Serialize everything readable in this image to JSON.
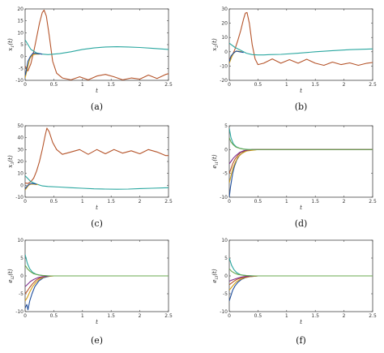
{
  "chart_data": [
    {
      "type": "line",
      "caption": "(a)",
      "xlabel": "t",
      "ylabel": "x_1(t)",
      "xlim": [
        0,
        2.5
      ],
      "ylim": [
        -10,
        20
      ],
      "xticks": [
        "0",
        "0.5",
        "1",
        "1.5",
        "2",
        "2.5"
      ],
      "xtick_values": [
        0,
        0.5,
        1,
        1.5,
        2,
        2.5
      ],
      "yticks": [
        "-10",
        "-5",
        "0",
        "5",
        "10",
        "15",
        "20"
      ],
      "ytick_values": [
        -10,
        -5,
        0,
        5,
        10,
        15,
        20
      ],
      "series": [
        {
          "color": "#b5542a",
          "x": [
            0,
            0.05,
            0.1,
            0.15,
            0.2,
            0.25,
            0.3,
            0.33,
            0.37,
            0.42,
            0.48,
            0.55,
            0.65,
            0.8,
            0.95,
            1.1,
            1.25,
            1.4,
            1.55,
            1.7,
            1.85,
            2.0,
            2.15,
            2.3,
            2.45,
            2.5
          ],
          "y": [
            -4,
            -6,
            -3,
            2,
            8,
            14,
            18.5,
            19.5,
            17,
            9,
            -2,
            -7,
            -9,
            -9.8,
            -8.5,
            -9.8,
            -8.2,
            -7.5,
            -8.5,
            -9.8,
            -9,
            -9.5,
            -7.8,
            -9.2,
            -7.5,
            -7.2
          ]
        },
        {
          "color": "#2aa7a0",
          "x": [
            0,
            0.1,
            0.2,
            0.3,
            0.4,
            0.6,
            0.8,
            1.0,
            1.2,
            1.4,
            1.6,
            1.8,
            2.0,
            2.2,
            2.5
          ],
          "y": [
            7,
            3,
            1.5,
            1,
            0.8,
            1.2,
            2,
            3,
            3.6,
            4,
            4.1,
            4,
            3.8,
            3.5,
            3
          ]
        },
        {
          "color": "#d4a017",
          "x": [
            0,
            0.02,
            0.05,
            0.08,
            0.12,
            0.18,
            0.25
          ],
          "y": [
            -9,
            -7,
            -4,
            -1,
            0.5,
            1,
            1
          ]
        },
        {
          "color": "#1f4e9c",
          "x": [
            0,
            0.02,
            0.05,
            0.09,
            0.14,
            0.2,
            0.3
          ],
          "y": [
            -8,
            -6,
            -2,
            0,
            1.5,
            1.2,
            1
          ]
        }
      ]
    },
    {
      "type": "line",
      "caption": "(b)",
      "xlabel": "t",
      "ylabel": "x_2(t)",
      "xlim": [
        0,
        2.5
      ],
      "ylim": [
        -20,
        30
      ],
      "xticks": [
        "0",
        "0.5",
        "1",
        "1.5",
        "2",
        "2.5"
      ],
      "xtick_values": [
        0,
        0.5,
        1,
        1.5,
        2,
        2.5
      ],
      "yticks": [
        "-20",
        "-10",
        "0",
        "10",
        "20",
        "30"
      ],
      "ytick_values": [
        -20,
        -10,
        0,
        10,
        20,
        30
      ],
      "series": [
        {
          "color": "#b5542a",
          "x": [
            0,
            0.05,
            0.1,
            0.15,
            0.2,
            0.25,
            0.28,
            0.31,
            0.35,
            0.4,
            0.45,
            0.5,
            0.6,
            0.75,
            0.9,
            1.05,
            1.2,
            1.35,
            1.5,
            1.65,
            1.8,
            1.95,
            2.1,
            2.25,
            2.4,
            2.5
          ],
          "y": [
            -5,
            -3,
            2,
            8,
            15,
            23,
            27,
            27.5,
            20,
            5,
            -5,
            -9,
            -8,
            -5,
            -8,
            -5.5,
            -8,
            -5.2,
            -8,
            -9.5,
            -7.2,
            -9,
            -7.8,
            -9.5,
            -8,
            -7.5
          ]
        },
        {
          "color": "#2aa7a0",
          "x": [
            0,
            0.1,
            0.2,
            0.3,
            0.4,
            0.5,
            0.6,
            0.7,
            0.9,
            1.2,
            1.5,
            1.8,
            2.1,
            2.5
          ],
          "y": [
            6,
            3,
            1,
            -1,
            -2,
            -2.2,
            -2.2,
            -2,
            -1.8,
            -1,
            0,
            0.8,
            1.5,
            2
          ]
        },
        {
          "color": "#d4a017",
          "x": [
            0,
            0.03,
            0.06,
            0.1,
            0.15,
            0.22
          ],
          "y": [
            -8,
            -5,
            -2,
            0,
            0.5,
            0
          ]
        },
        {
          "color": "#1f4e9c",
          "x": [
            0,
            0.03,
            0.07,
            0.12,
            0.18,
            0.25
          ],
          "y": [
            -7,
            -3,
            -1,
            0.5,
            0,
            -0.5
          ]
        }
      ]
    },
    {
      "type": "line",
      "caption": "(c)",
      "xlabel": "t",
      "ylabel": "x_3(t)",
      "xlim": [
        0,
        2.5
      ],
      "ylim": [
        -10,
        50
      ],
      "xticks": [
        "0",
        "0.5",
        "1",
        "1.5",
        "2",
        "2.5"
      ],
      "xtick_values": [
        0,
        0.5,
        1,
        1.5,
        2,
        2.5
      ],
      "yticks": [
        "-10",
        "0",
        "10",
        "20",
        "30",
        "40",
        "50"
      ],
      "ytick_values": [
        -10,
        0,
        10,
        20,
        30,
        40,
        50
      ],
      "series": [
        {
          "color": "#b5542a",
          "x": [
            0,
            0.05,
            0.1,
            0.15,
            0.2,
            0.25,
            0.3,
            0.35,
            0.38,
            0.42,
            0.48,
            0.55,
            0.65,
            0.8,
            0.95,
            1.1,
            1.25,
            1.4,
            1.55,
            1.7,
            1.85,
            2.0,
            2.15,
            2.3,
            2.45,
            2.5
          ],
          "y": [
            2,
            1.5,
            3,
            6,
            12,
            20,
            30,
            42,
            48,
            45,
            36,
            30,
            26,
            28,
            30,
            26,
            30,
            26.5,
            30,
            27,
            29,
            26.5,
            30,
            28,
            25,
            25
          ]
        },
        {
          "color": "#2aa7a0",
          "x": [
            0,
            0.1,
            0.2,
            0.3,
            0.4,
            0.6,
            0.8,
            1.0,
            1.2,
            1.4,
            1.6,
            1.8,
            2.0,
            2.2,
            2.5
          ],
          "y": [
            8,
            3,
            1,
            -0.5,
            -1,
            -1.5,
            -2,
            -2.5,
            -3,
            -3.2,
            -3.3,
            -3.2,
            -2.8,
            -2.5,
            -2
          ]
        },
        {
          "color": "#d4a017",
          "x": [
            0,
            0.03,
            0.06,
            0.1,
            0.15,
            0.22
          ],
          "y": [
            -4,
            -2,
            0,
            1,
            1,
            0.5
          ]
        },
        {
          "color": "#1f4e9c",
          "x": [
            0,
            0.03,
            0.07,
            0.12,
            0.2
          ],
          "y": [
            -3,
            -1,
            1,
            1.5,
            1
          ]
        }
      ]
    },
    {
      "type": "line",
      "caption": "(d)",
      "xlabel": "t",
      "ylabel": "e_{i1}(t)",
      "xlim": [
        0,
        2.5
      ],
      "ylim": [
        -10,
        5
      ],
      "xticks": [
        "0",
        "0.5",
        "1",
        "1.5",
        "2",
        "2.5"
      ],
      "xtick_values": [
        0,
        0.5,
        1,
        1.5,
        2,
        2.5
      ],
      "yticks": [
        "-10",
        "-5",
        "0",
        "5"
      ],
      "ytick_values": [
        -10,
        -5,
        0,
        5
      ],
      "series": [
        {
          "color": "#2aa7a0",
          "x": [
            0,
            0.03,
            0.07,
            0.12,
            0.18,
            0.25,
            0.35,
            0.5,
            2.5
          ],
          "y": [
            4.5,
            2.5,
            1.2,
            0.6,
            0.3,
            0.1,
            0,
            0,
            0
          ]
        },
        {
          "color": "#1f4e9c",
          "x": [
            0,
            0.02,
            0.04,
            0.06,
            0.09,
            0.13,
            0.18,
            0.25,
            0.35,
            0.5,
            2.5
          ],
          "y": [
            -10,
            -8,
            -6.5,
            -5,
            -3.5,
            -2.2,
            -1.2,
            -0.5,
            -0.1,
            0,
            0
          ]
        },
        {
          "color": "#d4a017",
          "x": [
            0,
            0.03,
            0.06,
            0.1,
            0.15,
            0.22,
            0.3,
            0.5,
            2.5
          ],
          "y": [
            -7,
            -5.5,
            -4,
            -2.8,
            -1.6,
            -0.8,
            -0.3,
            0,
            0
          ]
        },
        {
          "color": "#b5542a",
          "x": [
            0,
            0.03,
            0.06,
            0.1,
            0.15,
            0.2,
            0.28,
            0.4,
            2.5
          ],
          "y": [
            -5,
            -4,
            -3,
            -2,
            -1.2,
            -0.6,
            -0.2,
            0,
            0
          ]
        },
        {
          "color": "#7e2f8e",
          "x": [
            0,
            0.03,
            0.07,
            0.12,
            0.18,
            0.26,
            0.4,
            2.5
          ],
          "y": [
            -3,
            -2.5,
            -1.8,
            -1.2,
            -0.6,
            -0.2,
            0,
            0
          ]
        },
        {
          "color": "#6aa84f",
          "x": [
            0,
            0.03,
            0.07,
            0.12,
            0.2,
            0.3,
            2.5
          ],
          "y": [
            2.5,
            1.6,
            1,
            0.5,
            0.2,
            0,
            0
          ]
        }
      ]
    },
    {
      "type": "line",
      "caption": "(e)",
      "xlabel": "t",
      "ylabel": "e_{i2}(t)",
      "xlim": [
        0,
        2.5
      ],
      "ylim": [
        -10,
        10
      ],
      "xticks": [
        "0",
        "0.5",
        "1",
        "1.5",
        "2",
        "2.5"
      ],
      "xtick_values": [
        0,
        0.5,
        1,
        1.5,
        2,
        2.5
      ],
      "yticks": [
        "-10",
        "-5",
        "0",
        "5",
        "10"
      ],
      "ytick_values": [
        -10,
        -5,
        0,
        5,
        10
      ],
      "series": [
        {
          "color": "#2aa7a0",
          "x": [
            0,
            0.04,
            0.08,
            0.13,
            0.2,
            0.3,
            0.45,
            2.5
          ],
          "y": [
            6,
            3.5,
            2,
            1,
            0.4,
            0.1,
            0,
            0
          ]
        },
        {
          "color": "#1f4e9c",
          "x": [
            0,
            0.03,
            0.05,
            0.08,
            0.12,
            0.17,
            0.24,
            0.32,
            0.45,
            2.5
          ],
          "y": [
            -9,
            -8,
            -9.5,
            -7,
            -5,
            -3,
            -1.4,
            -0.5,
            0,
            0
          ]
        },
        {
          "color": "#d4a017",
          "x": [
            0,
            0.04,
            0.08,
            0.13,
            0.19,
            0.26,
            0.35,
            0.5,
            2.5
          ],
          "y": [
            -7,
            -6,
            -4.5,
            -3,
            -1.8,
            -0.8,
            -0.2,
            0,
            0
          ]
        },
        {
          "color": "#b5542a",
          "x": [
            0,
            0.04,
            0.08,
            0.13,
            0.19,
            0.26,
            0.35,
            0.5,
            2.5
          ],
          "y": [
            -5,
            -4.2,
            -3.2,
            -2.2,
            -1.2,
            -0.5,
            -0.1,
            0,
            0
          ]
        },
        {
          "color": "#7e2f8e",
          "x": [
            0,
            0.04,
            0.09,
            0.15,
            0.22,
            0.3,
            0.45,
            2.5
          ],
          "y": [
            -3,
            -2.4,
            -1.6,
            -1,
            -0.5,
            -0.2,
            0,
            0
          ]
        },
        {
          "color": "#6aa84f",
          "x": [
            0,
            0.04,
            0.09,
            0.15,
            0.25,
            0.4,
            2.5
          ],
          "y": [
            3,
            2,
            1.2,
            0.6,
            0.2,
            0,
            0
          ]
        }
      ]
    },
    {
      "type": "line",
      "caption": "(f)",
      "xlabel": "t",
      "ylabel": "e_{i3}(t)",
      "xlim": [
        0,
        2.5
      ],
      "ylim": [
        -10,
        10
      ],
      "xticks": [
        "0",
        "0.5",
        "1",
        "1.5",
        "2",
        "2.5"
      ],
      "xtick_values": [
        0,
        0.5,
        1,
        1.5,
        2,
        2.5
      ],
      "yticks": [
        "-10",
        "-5",
        "0",
        "5",
        "10"
      ],
      "ytick_values": [
        -10,
        -5,
        0,
        5,
        10
      ],
      "series": [
        {
          "color": "#2aa7a0",
          "x": [
            0,
            0.04,
            0.08,
            0.13,
            0.2,
            0.3,
            0.45,
            2.5
          ],
          "y": [
            5,
            3,
            1.8,
            0.9,
            0.3,
            0.1,
            0,
            0
          ]
        },
        {
          "color": "#1f4e9c",
          "x": [
            0,
            0.03,
            0.06,
            0.1,
            0.15,
            0.21,
            0.28,
            0.36,
            0.5,
            2.5
          ],
          "y": [
            -7,
            -5.5,
            -4,
            -2.8,
            -1.8,
            -1,
            -0.5,
            -0.2,
            0,
            0
          ]
        },
        {
          "color": "#d4a017",
          "x": [
            0,
            0.04,
            0.08,
            0.13,
            0.19,
            0.26,
            0.35,
            0.5,
            2.5
          ],
          "y": [
            -4,
            -3.2,
            -2.4,
            -1.6,
            -1,
            -0.5,
            -0.2,
            0,
            0
          ]
        },
        {
          "color": "#b5542a",
          "x": [
            0,
            0.04,
            0.08,
            0.13,
            0.2,
            0.28,
            0.38,
            0.5,
            2.5
          ],
          "y": [
            -2.5,
            -2,
            -1.5,
            -1,
            -0.6,
            -0.3,
            -0.1,
            0,
            0
          ]
        },
        {
          "color": "#7e2f8e",
          "x": [
            0,
            0.04,
            0.09,
            0.15,
            0.22,
            0.3,
            0.45,
            2.5
          ],
          "y": [
            -1.5,
            -1.2,
            -0.9,
            -0.6,
            -0.3,
            -0.1,
            0,
            0
          ]
        },
        {
          "color": "#6aa84f",
          "x": [
            0,
            0.04,
            0.09,
            0.15,
            0.25,
            0.4,
            2.5
          ],
          "y": [
            2,
            1.3,
            0.8,
            0.4,
            0.15,
            0,
            0
          ]
        }
      ]
    }
  ]
}
